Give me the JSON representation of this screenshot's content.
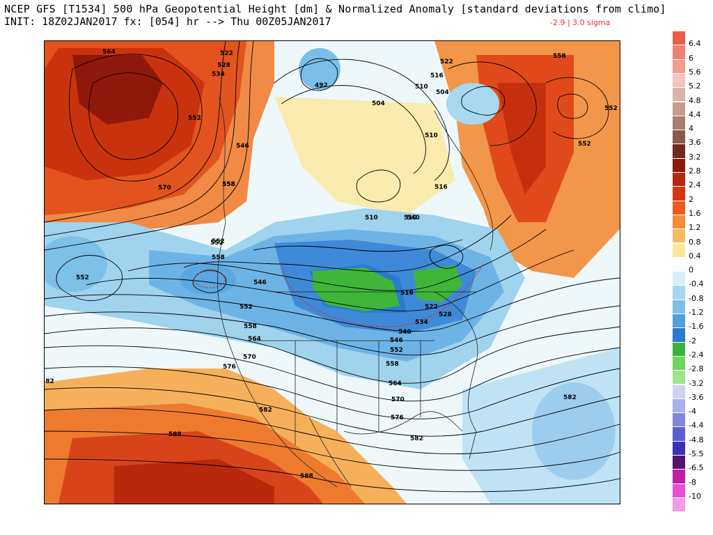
{
  "header": {
    "title": "NCEP GFS [T1534] 500 hPa Geopotential Height [dm] & Normalized Anomaly [standard deviations from climo]",
    "init": "INIT: 18Z02JAN2017 fx: [054] hr --> Thu 00Z05JAN2017",
    "sigma_range": "-2.9 | 3.0 sigma"
  },
  "colorbar": {
    "labels": [
      "6.4",
      "6",
      "5.6",
      "5.2",
      "4.8",
      "4.4",
      "4",
      "3.6",
      "3.2",
      "2.8",
      "2.4",
      "2",
      "1.6",
      "1.2",
      "0.8",
      "0.4",
      "0",
      "-0.4",
      "-0.8",
      "-1.2",
      "-1.6",
      "-2",
      "-2.4",
      "-2.8",
      "-3.2",
      "-3.6",
      "-4",
      "-4.4",
      "-4.8",
      "-5.5",
      "-6.5",
      "-8",
      "-10"
    ],
    "colors": [
      "#e85c4c",
      "#ef7f70",
      "#f29b8e",
      "#f6c3bc",
      "#d9b4aa",
      "#c79a8c",
      "#a97c6c",
      "#8c5a48",
      "#6f2a1c",
      "#8a1a0c",
      "#b4260e",
      "#d7330f",
      "#ec5a1e",
      "#f38d3c",
      "#f7bb62",
      "#fbe69a",
      "#ffffff",
      "#d6eef8",
      "#a7d8ef",
      "#7cc0e9",
      "#4f9fe0",
      "#2a7bd0",
      "#39b33a",
      "#6dd45e",
      "#9fe490",
      "#cdd3f0",
      "#a9b0ea",
      "#8285e0",
      "#5b5fd3",
      "#3b30b8",
      "#52146a",
      "#c01ea8",
      "#e84fd6",
      "#f39bea"
    ]
  },
  "contour_labels": [
    "564",
    "522",
    "528",
    "534",
    "552",
    "546",
    "558",
    "552",
    "504",
    "492",
    "510",
    "504",
    "516",
    "522",
    "510",
    "516",
    "510",
    "558",
    "552",
    "552",
    "570",
    "552",
    "558",
    "552",
    "546",
    "552",
    "558",
    "564",
    "570",
    "576",
    "582",
    "588",
    "588",
    "540",
    "546",
    "552",
    "558",
    "564",
    "570",
    "576",
    "582",
    "516",
    "522",
    "528",
    "534",
    "540",
    "510",
    "582",
    "558",
    "582"
  ]
}
